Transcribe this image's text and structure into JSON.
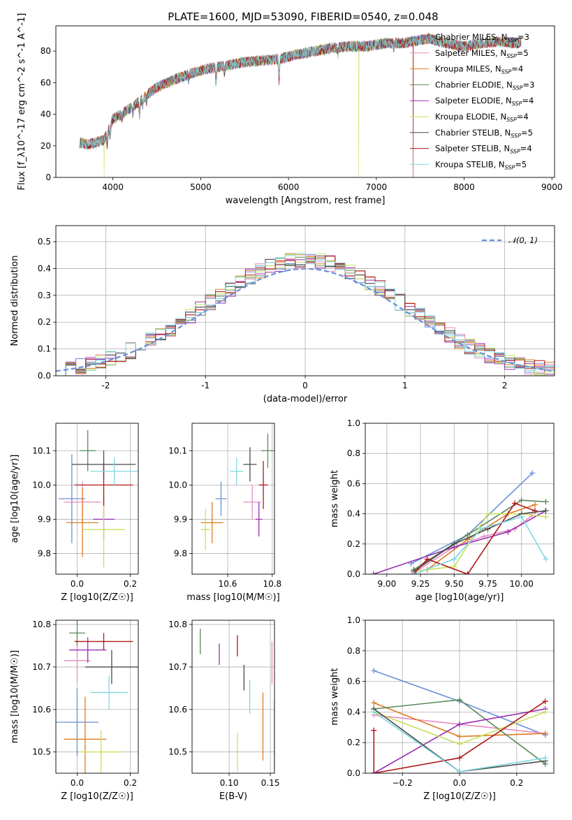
{
  "figure": {
    "title": "PLATE=1600, MJD=53090, FIBERID=0540, z=0.048",
    "colors": {
      "Chabrier MILES": "#6a8fd8",
      "Salpeter MILES": "#e68cc0",
      "Kroupa MILES": "#e07a22",
      "Chabrier ELODIE": "#5a8a5a",
      "Salpeter ELODIE": "#9a2fb5",
      "Kroupa ELODIE": "#c8e05a",
      "Chabrier STELIB": "#4a4a4a",
      "Salpeter STELIB": "#b01818",
      "Kroupa STELIB": "#7ed6e0"
    }
  },
  "chart_data": [
    {
      "id": "spectrum",
      "type": "line",
      "xlabel": "wavelength [Angstrom, rest frame]",
      "ylabel": "Flux [f_λ10^-17 erg cm^-2 s^-1 A^-1]",
      "xlim": [
        3350,
        9030
      ],
      "ylim": [
        0,
        96
      ],
      "xticks": [
        4000,
        5000,
        6000,
        7000,
        8000,
        9000
      ],
      "yticks": [
        0,
        20,
        40,
        60,
        80
      ],
      "grid": false,
      "legend_position": "top-right",
      "legend": [
        {
          "name": "Chabrier MILES",
          "label": "Chabrier MILES, N",
          "sub": "SSP",
          "suffix": "=3"
        },
        {
          "name": "Salpeter MILES",
          "label": "Salpeter MILES, N",
          "sub": "SSP",
          "suffix": "=5"
        },
        {
          "name": "Kroupa MILES",
          "label": "Kroupa MILES, N",
          "sub": "SSP",
          "suffix": "=4"
        },
        {
          "name": "Chabrier ELODIE",
          "label": "Chabrier ELODIE, N",
          "sub": "SSP",
          "suffix": "=3"
        },
        {
          "name": "Salpeter ELODIE",
          "label": "Salpeter ELODIE, N",
          "sub": "SSP",
          "suffix": "=4"
        },
        {
          "name": "Kroupa ELODIE",
          "label": "Kroupa ELODIE, N",
          "sub": "SSP",
          "suffix": "=4"
        },
        {
          "name": "Chabrier STELIB",
          "label": "Chabrier STELIB, N",
          "sub": "SSP",
          "suffix": "=5"
        },
        {
          "name": "Salpeter STELIB",
          "label": "Salpeter STELIB, N",
          "sub": "SSP",
          "suffix": "=4"
        },
        {
          "name": "Kroupa STELIB",
          "label": "Kroupa STELIB, N",
          "sub": "SSP",
          "suffix": "=5"
        }
      ],
      "continuum": [
        [
          3620,
          22
        ],
        [
          3700,
          21
        ],
        [
          3800,
          22
        ],
        [
          3900,
          24
        ],
        [
          3950,
          30
        ],
        [
          4000,
          37
        ],
        [
          4100,
          40
        ],
        [
          4200,
          44
        ],
        [
          4300,
          48
        ],
        [
          4400,
          53
        ],
        [
          4500,
          57
        ],
        [
          4700,
          62
        ],
        [
          4900,
          66
        ],
        [
          5100,
          69
        ],
        [
          5300,
          71
        ],
        [
          5500,
          73
        ],
        [
          5700,
          74
        ],
        [
          5900,
          75
        ],
        [
          6100,
          78
        ],
        [
          6300,
          80
        ],
        [
          6500,
          82
        ],
        [
          6700,
          83
        ],
        [
          6900,
          83
        ],
        [
          7100,
          85
        ],
        [
          7300,
          85
        ],
        [
          7400,
          86
        ],
        [
          7600,
          88
        ],
        [
          7800,
          85
        ],
        [
          8000,
          83
        ],
        [
          8200,
          85
        ],
        [
          8400,
          86
        ],
        [
          8600,
          85
        ],
        [
          8650,
          86
        ]
      ],
      "absorption_lines": [
        [
          3934,
          8
        ],
        [
          3969,
          8
        ],
        [
          4102,
          4
        ],
        [
          4227,
          5
        ],
        [
          4304,
          8
        ],
        [
          4340,
          4
        ],
        [
          4383,
          4
        ],
        [
          4861,
          4
        ],
        [
          5175,
          10
        ],
        [
          5270,
          4
        ],
        [
          5892,
          14
        ],
        [
          6563,
          4
        ],
        [
          7200,
          3
        ]
      ],
      "drops": [
        {
          "name": "Kroupa ELODIE",
          "from": 3900,
          "to": 9030
        },
        {
          "name": "Kroupa ELODIE",
          "at": 3900
        },
        {
          "name": "Kroupa ELODIE",
          "at": 6800
        },
        {
          "name": "Salpeter STELIB",
          "at": 7420
        }
      ]
    },
    {
      "id": "residuals",
      "type": "histogram",
      "xlabel": "(data-model)/error",
      "ylabel": "Normed distribution",
      "xlim": [
        -2.5,
        2.5
      ],
      "ylim": [
        0,
        0.56
      ],
      "xticks": [
        -2,
        -1,
        0,
        1,
        2
      ],
      "yticks": [
        0.0,
        0.1,
        0.2,
        0.3,
        0.4,
        0.5
      ],
      "grid": true,
      "bin_width": 0.1,
      "legend_position": "top-right",
      "reference": {
        "name": "𝒩(0, 1)",
        "mean": 0,
        "sigma": 1,
        "color": "#6a8fd8"
      }
    },
    {
      "id": "age-vs-Z",
      "type": "scatter",
      "xlabel": "Z [log10(Z/Z☉)]",
      "ylabel": "age  [log10(age/yr)]",
      "xlim": [
        -0.08,
        0.23
      ],
      "ylim": [
        9.74,
        10.18
      ],
      "xticks": [
        0.0,
        0.2
      ],
      "yticks": [
        9.8,
        9.9,
        10.0,
        10.1
      ],
      "grid": true,
      "points": [
        {
          "name": "Chabrier MILES",
          "x": -0.02,
          "y": 9.96,
          "xerr": 0.05,
          "yerr": 0.13
        },
        {
          "name": "Salpeter MILES",
          "x": 0.02,
          "y": 9.95,
          "xerr": 0.07,
          "yerr": 0.06
        },
        {
          "name": "Kroupa MILES",
          "x": 0.02,
          "y": 9.89,
          "xerr": 0.06,
          "yerr": 0.1
        },
        {
          "name": "Chabrier ELODIE",
          "x": 0.04,
          "y": 10.1,
          "xerr": 0.03,
          "yerr": 0.06
        },
        {
          "name": "Salpeter ELODIE",
          "x": 0.1,
          "y": 9.9,
          "xerr": 0.04,
          "yerr": 0.06
        },
        {
          "name": "Kroupa ELODIE",
          "x": 0.1,
          "y": 9.87,
          "xerr": 0.08,
          "yerr": 0.11
        },
        {
          "name": "Chabrier STELIB",
          "x": 0.1,
          "y": 10.06,
          "xerr": 0.12,
          "yerr": 0.04
        },
        {
          "name": "Salpeter STELIB",
          "x": 0.1,
          "y": 10.0,
          "xerr": 0.11,
          "yerr": 0.06
        },
        {
          "name": "Kroupa STELIB",
          "x": 0.14,
          "y": 10.04,
          "xerr": 0.09,
          "yerr": 0.04
        }
      ]
    },
    {
      "id": "age-vs-mass",
      "type": "scatter",
      "xlabel": "mass [log10(M/M☉)]",
      "ylabel": "",
      "xlim": [
        10.44,
        10.81
      ],
      "ylim": [
        9.74,
        10.18
      ],
      "xticks": [
        10.6,
        10.8
      ],
      "yticks": [
        9.8,
        9.9,
        10.0,
        10.1
      ],
      "grid": true,
      "points": [
        {
          "name": "Chabrier MILES",
          "x": 10.57,
          "y": 9.96,
          "xerr": 0.025,
          "yerr": 0.05
        },
        {
          "name": "Salpeter MILES",
          "x": 10.71,
          "y": 9.95,
          "xerr": 0.04,
          "yerr": 0.05
        },
        {
          "name": "Kroupa MILES",
          "x": 10.53,
          "y": 9.89,
          "xerr": 0.05,
          "yerr": 0.06
        },
        {
          "name": "Chabrier ELODIE",
          "x": 10.78,
          "y": 10.1,
          "xerr": 0.03,
          "yerr": 0.05
        },
        {
          "name": "Salpeter ELODIE",
          "x": 10.74,
          "y": 9.9,
          "xerr": 0.015,
          "yerr": 0.05
        },
        {
          "name": "Kroupa ELODIE",
          "x": 10.5,
          "y": 9.87,
          "xerr": 0.02,
          "yerr": 0.06
        },
        {
          "name": "Chabrier STELIB",
          "x": 10.7,
          "y": 10.06,
          "xerr": 0.03,
          "yerr": 0.05
        },
        {
          "name": "Salpeter STELIB",
          "x": 10.76,
          "y": 10.0,
          "xerr": 0.02,
          "yerr": 0.07
        },
        {
          "name": "Kroupa STELIB",
          "x": 10.64,
          "y": 10.04,
          "xerr": 0.03,
          "yerr": 0.04
        }
      ]
    },
    {
      "id": "weight-vs-age",
      "type": "line",
      "xlabel": "age  [log10(age/yr)]",
      "ylabel": "mass weight",
      "xlim": [
        8.84,
        10.24
      ],
      "ylim": [
        0,
        1
      ],
      "xticks": [
        9.0,
        9.25,
        9.5,
        9.75,
        10.0
      ],
      "yticks": [
        0.0,
        0.2,
        0.4,
        0.6,
        0.8,
        1.0
      ],
      "grid": true,
      "series": [
        {
          "name": "Chabrier MILES",
          "x": [
            9.18,
            9.6,
            10.08
          ],
          "y": [
            0.07,
            0.26,
            0.67
          ]
        },
        {
          "name": "Salpeter MILES",
          "x": [
            9.2,
            9.5,
            9.72,
            9.95,
            10.08
          ],
          "y": [
            0.01,
            0.18,
            0.25,
            0.3,
            0.39
          ]
        },
        {
          "name": "Kroupa MILES",
          "x": [
            9.3,
            9.6,
            9.9,
            10.1
          ],
          "y": [
            0.03,
            0.23,
            0.4,
            0.46
          ]
        },
        {
          "name": "Chabrier ELODIE",
          "x": [
            9.2,
            9.6,
            10.0,
            10.18
          ],
          "y": [
            0.03,
            0.26,
            0.49,
            0.48
          ]
        },
        {
          "name": "Salpeter ELODIE",
          "x": [
            8.9,
            9.5,
            9.9,
            10.18
          ],
          "y": [
            0.0,
            0.18,
            0.28,
            0.42
          ]
        },
        {
          "name": "Kroupa ELODIE",
          "x": [
            9.2,
            9.5,
            9.75,
            10.0,
            10.18
          ],
          "y": [
            0.02,
            0.05,
            0.4,
            0.4,
            0.38
          ]
        },
        {
          "name": "Chabrier STELIB",
          "x": [
            9.2,
            9.5,
            9.75,
            10.0,
            10.18
          ],
          "y": [
            0.02,
            0.2,
            0.3,
            0.4,
            0.42
          ]
        },
        {
          "name": "Salpeter STELIB",
          "x": [
            9.2,
            9.3,
            9.6,
            9.95,
            10.1
          ],
          "y": [
            0.0,
            0.1,
            0.0,
            0.47,
            0.42
          ]
        },
        {
          "name": "Kroupa STELIB",
          "x": [
            9.2,
            9.5,
            9.7,
            10.0,
            10.18
          ],
          "y": [
            0.0,
            0.1,
            0.3,
            0.38,
            0.1
          ]
        }
      ]
    },
    {
      "id": "mass-vs-Z",
      "type": "scatter",
      "xlabel": "Z [log10(Z/Z☉)]",
      "ylabel": "mass [log10(M/M☉)]",
      "xlim": [
        -0.08,
        0.23
      ],
      "ylim": [
        10.45,
        10.81
      ],
      "xticks": [
        0.0,
        0.2
      ],
      "yticks": [
        10.5,
        10.6,
        10.7,
        10.8
      ],
      "grid": true,
      "points": [
        {
          "name": "Chabrier MILES",
          "x": 0.0,
          "y": 10.57,
          "xerr": 0.08,
          "yerr": 0.08
        },
        {
          "name": "Salpeter MILES",
          "x": 0.0,
          "y": 10.715,
          "xerr": 0.05,
          "yerr": 0.05
        },
        {
          "name": "Kroupa MILES",
          "x": 0.03,
          "y": 10.53,
          "xerr": 0.08,
          "yerr": 0.1
        },
        {
          "name": "Chabrier ELODIE",
          "x": 0.0,
          "y": 10.78,
          "xerr": 0.03,
          "yerr": 0.03
        },
        {
          "name": "Salpeter ELODIE",
          "x": 0.04,
          "y": 10.74,
          "xerr": 0.07,
          "yerr": 0.03
        },
        {
          "name": "Kroupa ELODIE",
          "x": 0.09,
          "y": 10.5,
          "xerr": 0.08,
          "yerr": 0.05
        },
        {
          "name": "Chabrier STELIB",
          "x": 0.13,
          "y": 10.7,
          "xerr": 0.1,
          "yerr": 0.04
        },
        {
          "name": "Salpeter STELIB",
          "x": 0.1,
          "y": 10.76,
          "xerr": 0.11,
          "yerr": 0.02
        },
        {
          "name": "Kroupa STELIB",
          "x": 0.12,
          "y": 10.64,
          "xerr": 0.07,
          "yerr": 0.04
        }
      ]
    },
    {
      "id": "mass-vs-EBV",
      "type": "scatter",
      "xlabel": "E(B-V)",
      "ylabel": "",
      "xlim": [
        0.055,
        0.155
      ],
      "ylim": [
        10.45,
        10.81
      ],
      "xticks": [
        0.1,
        0.15
      ],
      "yticks": [
        10.5,
        10.6,
        10.7,
        10.8
      ],
      "grid": true,
      "points": [
        {
          "name": "Chabrier MILES",
          "x": 0.155,
          "y": 10.54,
          "xerr": 0,
          "yerr": 0.08
        },
        {
          "name": "Salpeter MILES",
          "x": 0.152,
          "y": 10.71,
          "xerr": 0,
          "yerr": 0.05
        },
        {
          "name": "Kroupa MILES",
          "x": 0.141,
          "y": 10.56,
          "xerr": 0,
          "yerr": 0.08
        },
        {
          "name": "Chabrier ELODIE",
          "x": 0.065,
          "y": 10.76,
          "xerr": 0,
          "yerr": 0.03
        },
        {
          "name": "Salpeter ELODIE",
          "x": 0.088,
          "y": 10.73,
          "xerr": 0,
          "yerr": 0.025
        },
        {
          "name": "Kroupa ELODIE",
          "x": 0.11,
          "y": 10.5,
          "xerr": 0,
          "yerr": 0.045
        },
        {
          "name": "Chabrier STELIB",
          "x": 0.118,
          "y": 10.675,
          "xerr": 0,
          "yerr": 0.03
        },
        {
          "name": "Salpeter STELIB",
          "x": 0.11,
          "y": 10.75,
          "xerr": 0,
          "yerr": 0.025
        },
        {
          "name": "Kroupa STELIB",
          "x": 0.125,
          "y": 10.63,
          "xerr": 0,
          "yerr": 0.04
        }
      ]
    },
    {
      "id": "weight-vs-Z",
      "type": "line",
      "xlabel": "Z [log10(Z/Z☉)]",
      "ylabel": "mass weight",
      "xlim": [
        -0.33,
        0.33
      ],
      "ylim": [
        0,
        1
      ],
      "xticks": [
        -0.2,
        0.0,
        0.2
      ],
      "yticks": [
        0.0,
        0.2,
        0.4,
        0.6,
        0.8,
        1.0
      ],
      "grid": true,
      "series": [
        {
          "name": "Chabrier MILES",
          "x": [
            -0.3,
            0.0,
            0.3
          ],
          "y": [
            0.67,
            0.47,
            0.25
          ]
        },
        {
          "name": "Salpeter MILES",
          "x": [
            -0.3,
            0.0,
            0.3
          ],
          "y": [
            0.38,
            0.32,
            0.26
          ]
        },
        {
          "name": "Kroupa MILES",
          "x": [
            -0.3,
            0.0,
            0.3
          ],
          "y": [
            0.46,
            0.24,
            0.26
          ]
        },
        {
          "name": "Chabrier ELODIE",
          "x": [
            -0.3,
            0.0,
            0.3
          ],
          "y": [
            0.42,
            0.48,
            0.06
          ]
        },
        {
          "name": "Salpeter ELODIE",
          "x": [
            -0.3,
            0.0,
            0.3
          ],
          "y": [
            0.0,
            0.32,
            0.42
          ]
        },
        {
          "name": "Kroupa ELODIE",
          "x": [
            -0.3,
            0.0,
            0.3
          ],
          "y": [
            0.4,
            0.19,
            0.4
          ]
        },
        {
          "name": "Chabrier STELIB",
          "x": [
            -0.3,
            0.0,
            0.3
          ],
          "y": [
            0.42,
            0.01,
            0.08
          ]
        },
        {
          "name": "Salpeter STELIB",
          "x": [
            -0.3,
            -0.3,
            0.0,
            0.3
          ],
          "y": [
            0.28,
            0.0,
            0.1,
            0.47
          ]
        },
        {
          "name": "Kroupa STELIB",
          "x": [
            -0.3,
            0.0,
            0.3
          ],
          "y": [
            0.4,
            0.01,
            0.1
          ]
        }
      ]
    }
  ]
}
